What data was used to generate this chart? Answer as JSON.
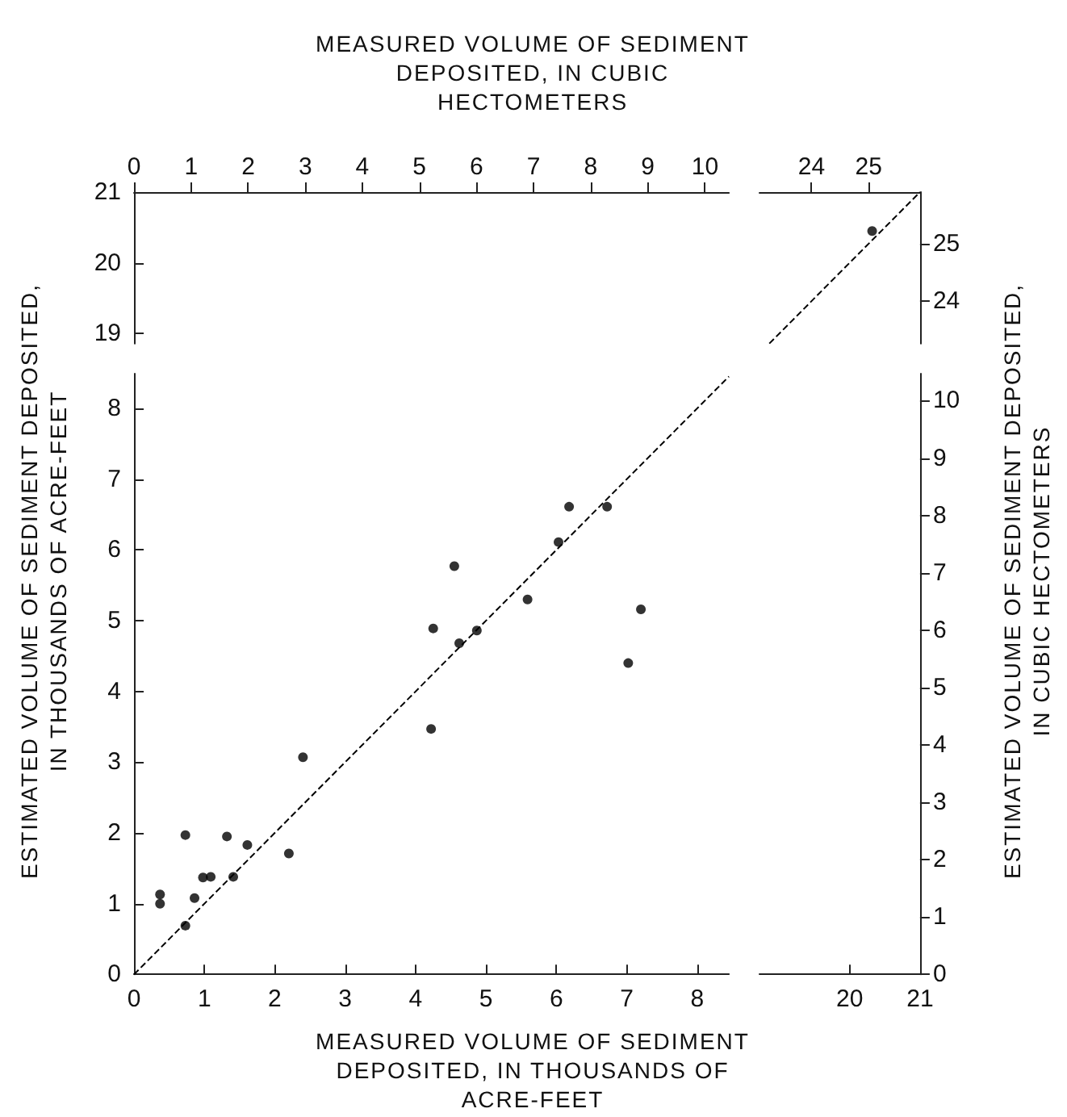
{
  "chart_data": [
    {
      "type": "scatter",
      "x2label": "MEASURED VOLUME OF SEDIMENT DEPOSITED, IN CUBIC HECTOMETERS",
      "xlim": [
        0,
        8.45
      ],
      "ylim": [
        18.86,
        21
      ],
      "yticks": [
        19,
        20,
        21
      ],
      "x2lim": [
        0,
        10.42
      ],
      "x2ticks": [
        0,
        1,
        2,
        3,
        4,
        5,
        6,
        7,
        8,
        9,
        10
      ]
    },
    {
      "type": "scatter",
      "xlim": [
        18.72,
        21
      ],
      "ylim": [
        18.86,
        21
      ],
      "x2lim": [
        23.09,
        25.9
      ],
      "x2ticks": [
        24,
        25
      ],
      "y2lim": [
        23.26,
        25.9
      ],
      "y2ticks": [
        24,
        25
      ],
      "series": [
        {
          "marker": "circle",
          "color": "#000000",
          "x": [
            20.32
          ],
          "values": [
            20.45
          ]
        },
        {
          "type": "line",
          "marker": "none",
          "line_style": "dashed",
          "color": "#000000",
          "x": [
            18.86,
            21
          ],
          "values": [
            18.86,
            21
          ]
        }
      ]
    },
    {
      "type": "scatter",
      "xlabel": "MEASURED VOLUME OF SEDIMENT DEPOSITED, IN THOUSANDS OF ACRE-FEET",
      "ylabel": "ESTIMATED VOLUME OF SEDIMENT DEPOSITED, IN THOUSANDS OF ACRE-FEET",
      "xlim": [
        0,
        8.45
      ],
      "ylim": [
        0,
        8.49
      ],
      "xticks": [
        0,
        1,
        2,
        3,
        4,
        5,
        6,
        7,
        8
      ],
      "yticks": [
        0,
        1,
        2,
        3,
        4,
        5,
        6,
        7,
        8
      ],
      "series": [
        {
          "marker": "circle",
          "color": "#000000",
          "x": [
            0.37,
            0.37,
            0.73,
            0.73,
            0.86,
            0.98,
            1.09,
            1.32,
            1.41,
            1.61,
            2.2,
            2.4,
            4.22,
            4.25,
            4.55,
            4.62,
            4.87,
            5.59,
            6.03,
            6.18,
            6.72,
            7.02,
            7.2
          ],
          "values": [
            1.0,
            1.13,
            1.97,
            0.69,
            1.08,
            1.37,
            1.38,
            1.95,
            1.38,
            1.83,
            1.71,
            3.07,
            3.47,
            4.89,
            5.77,
            4.68,
            4.86,
            5.3,
            6.11,
            6.61,
            6.61,
            4.4,
            5.16
          ]
        },
        {
          "type": "line",
          "marker": "none",
          "line_style": "dashed",
          "color": "#000000",
          "x": [
            0,
            8.45
          ],
          "values": [
            0,
            8.45
          ]
        }
      ]
    },
    {
      "type": "scatter",
      "y2label": "ESTIMATED VOLUME OF SEDIMENT DEPOSITED, IN CUBIC HECTOMETERS",
      "xlim": [
        18.72,
        21
      ],
      "ylim": [
        0,
        8.49
      ],
      "xticks": [
        20,
        21
      ],
      "y2lim": [
        0,
        10.47
      ],
      "y2ticks": [
        0,
        1,
        2,
        3,
        4,
        5,
        6,
        7,
        8,
        9,
        10
      ]
    }
  ]
}
